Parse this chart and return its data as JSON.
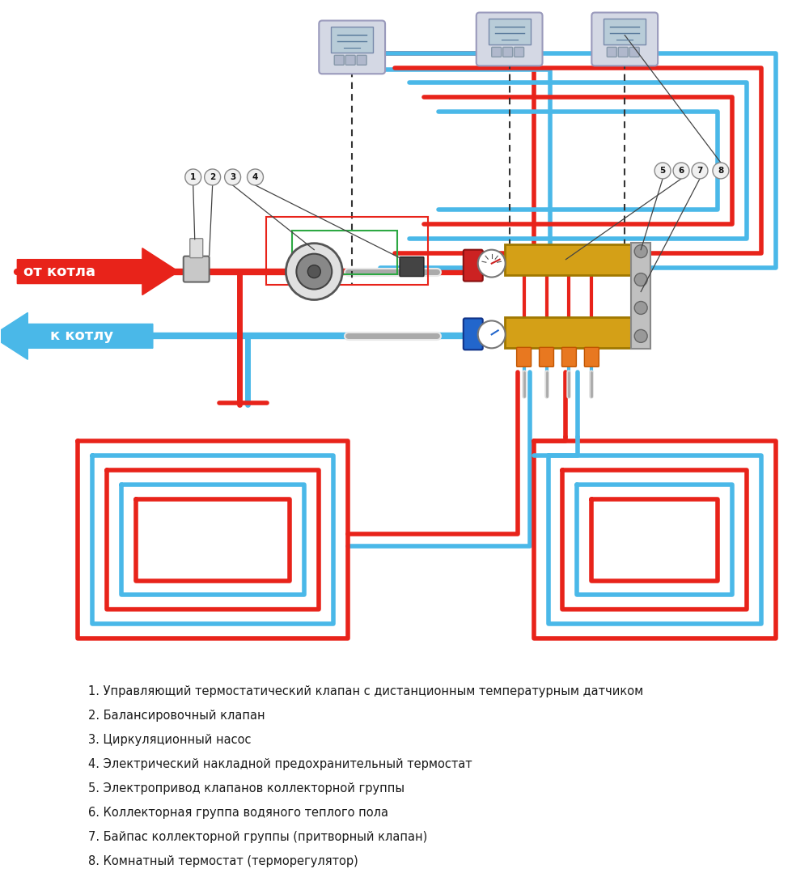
{
  "bg_color": "#ffffff",
  "red": "#e8231a",
  "blue": "#4ab8e8",
  "green": "#2da843",
  "legend": [
    "1. Управляющий термостатический клапан с дистанционным температурным датчиком",
    "2. Балансировочный клапан",
    "3. Циркуляционный насос",
    "4. Электрический накладной предохранительный термостат",
    "5. Электропривод клапанов коллекторной группы",
    "6. Коллекторная группа водяного теплого пола",
    "7. Байпас коллекторной группы (притворный клапан)",
    "8. Комнатный термостат (терморегулятор)"
  ],
  "from_kotla": "от котла",
  "k_kotlu": "к котлу"
}
